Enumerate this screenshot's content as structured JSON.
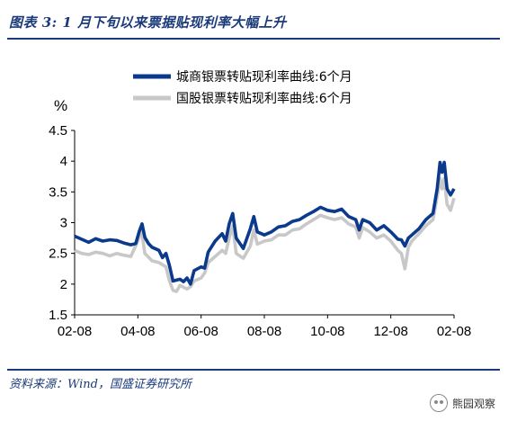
{
  "header": {
    "title": "图表 3: 1 月下旬以来票据贴现利率大幅上升"
  },
  "footer": {
    "source": "资料来源：Wind，国盛证券研究所"
  },
  "watermark": {
    "text": "熊园观察",
    "icon": "wechat-icon"
  },
  "chart_data": {
    "type": "line",
    "ylabel": "%",
    "ylim": [
      1.5,
      4.5
    ],
    "yticks": [
      "1.5",
      "2",
      "2.5",
      "3",
      "3.5",
      "4",
      "4.5"
    ],
    "xticks": [
      "02-08",
      "04-08",
      "06-08",
      "08-08",
      "10-08",
      "12-08",
      "02-08"
    ],
    "legend_position": "top-center",
    "grid": false,
    "series": [
      {
        "name": "城商银票转贴现利率曲线:6个月",
        "color": "#0b3a8c",
        "points": [
          [
            0.0,
            2.78
          ],
          [
            2.0,
            2.68
          ],
          [
            3.0,
            2.74
          ],
          [
            4.0,
            2.7
          ],
          [
            5.0,
            2.72
          ],
          [
            6.0,
            2.71
          ],
          [
            7.0,
            2.67
          ],
          [
            8.0,
            2.64
          ],
          [
            8.7,
            2.66
          ],
          [
            9.2,
            2.86
          ],
          [
            9.6,
            2.98
          ],
          [
            10.0,
            2.76
          ],
          [
            10.5,
            2.66
          ],
          [
            11.0,
            2.6
          ],
          [
            12.0,
            2.55
          ],
          [
            12.5,
            2.43
          ],
          [
            13.0,
            2.5
          ],
          [
            13.5,
            2.3
          ],
          [
            14.0,
            2.05
          ],
          [
            15.0,
            2.08
          ],
          [
            15.5,
            2.04
          ],
          [
            16.0,
            2.1
          ],
          [
            16.5,
            2.0
          ],
          [
            17.0,
            2.22
          ],
          [
            18.0,
            2.28
          ],
          [
            18.5,
            2.26
          ],
          [
            19.0,
            2.52
          ],
          [
            20.0,
            2.7
          ],
          [
            21.0,
            2.82
          ],
          [
            21.5,
            2.7
          ],
          [
            22.0,
            2.98
          ],
          [
            22.5,
            3.15
          ],
          [
            23.0,
            2.75
          ],
          [
            24.0,
            2.58
          ],
          [
            25.0,
            2.9
          ],
          [
            25.5,
            3.1
          ],
          [
            26.0,
            2.85
          ],
          [
            27.0,
            2.8
          ],
          [
            28.0,
            2.85
          ],
          [
            29.0,
            2.93
          ],
          [
            30.0,
            2.95
          ],
          [
            31.0,
            3.02
          ],
          [
            32.0,
            3.05
          ],
          [
            33.0,
            3.12
          ],
          [
            34.0,
            3.18
          ],
          [
            35.0,
            3.25
          ],
          [
            36.0,
            3.2
          ],
          [
            37.0,
            3.18
          ],
          [
            38.0,
            3.22
          ],
          [
            39.0,
            3.1
          ],
          [
            40.0,
            3.05
          ],
          [
            40.5,
            2.88
          ],
          [
            41.0,
            3.05
          ],
          [
            42.0,
            3.0
          ],
          [
            43.0,
            2.88
          ],
          [
            44.0,
            2.95
          ],
          [
            45.0,
            2.85
          ],
          [
            46.0,
            2.73
          ],
          [
            46.5,
            2.72
          ],
          [
            47.0,
            2.62
          ],
          [
            47.5,
            2.75
          ],
          [
            48.0,
            2.8
          ],
          [
            49.0,
            2.9
          ],
          [
            50.0,
            3.05
          ],
          [
            51.0,
            3.15
          ],
          [
            51.6,
            3.55
          ],
          [
            52.0,
            3.98
          ],
          [
            52.3,
            3.82
          ],
          [
            52.6,
            3.98
          ],
          [
            53.0,
            3.55
          ],
          [
            53.5,
            3.45
          ],
          [
            54.0,
            3.55
          ]
        ]
      },
      {
        "name": "国股银票转贴现利率曲线:6个月",
        "color": "#c8c8c8",
        "points": [
          [
            0.0,
            2.55
          ],
          [
            1.0,
            2.5
          ],
          [
            2.0,
            2.48
          ],
          [
            3.0,
            2.52
          ],
          [
            4.0,
            2.5
          ],
          [
            5.0,
            2.46
          ],
          [
            6.0,
            2.5
          ],
          [
            7.0,
            2.47
          ],
          [
            8.0,
            2.45
          ],
          [
            9.0,
            2.7
          ],
          [
            9.5,
            2.88
          ],
          [
            10.0,
            2.5
          ],
          [
            10.5,
            2.44
          ],
          [
            11.0,
            2.38
          ],
          [
            12.0,
            2.35
          ],
          [
            13.0,
            2.28
          ],
          [
            13.5,
            2.05
          ],
          [
            14.0,
            1.9
          ],
          [
            14.5,
            1.88
          ],
          [
            15.0,
            1.98
          ],
          [
            16.0,
            1.92
          ],
          [
            16.5,
            1.96
          ],
          [
            17.0,
            2.05
          ],
          [
            18.0,
            2.1
          ],
          [
            18.5,
            2.18
          ],
          [
            19.0,
            2.35
          ],
          [
            20.0,
            2.45
          ],
          [
            21.0,
            2.55
          ],
          [
            21.5,
            2.5
          ],
          [
            22.0,
            2.75
          ],
          [
            22.5,
            2.95
          ],
          [
            23.0,
            2.5
          ],
          [
            24.0,
            2.42
          ],
          [
            25.0,
            2.62
          ],
          [
            25.5,
            2.88
          ],
          [
            26.0,
            2.65
          ],
          [
            27.0,
            2.7
          ],
          [
            28.0,
            2.72
          ],
          [
            29.0,
            2.8
          ],
          [
            30.0,
            2.8
          ],
          [
            31.0,
            2.88
          ],
          [
            32.0,
            2.9
          ],
          [
            33.0,
            2.98
          ],
          [
            34.0,
            3.05
          ],
          [
            35.0,
            3.12
          ],
          [
            36.0,
            3.08
          ],
          [
            37.0,
            3.05
          ],
          [
            38.0,
            3.08
          ],
          [
            39.0,
            2.98
          ],
          [
            40.0,
            2.93
          ],
          [
            40.5,
            2.75
          ],
          [
            41.0,
            2.92
          ],
          [
            42.0,
            2.85
          ],
          [
            43.0,
            2.75
          ],
          [
            44.0,
            2.8
          ],
          [
            45.0,
            2.7
          ],
          [
            46.0,
            2.55
          ],
          [
            46.5,
            2.5
          ],
          [
            47.0,
            2.25
          ],
          [
            47.5,
            2.6
          ],
          [
            48.0,
            2.7
          ],
          [
            49.0,
            2.82
          ],
          [
            50.0,
            2.95
          ],
          [
            51.0,
            3.05
          ],
          [
            51.6,
            3.42
          ],
          [
            52.0,
            3.72
          ],
          [
            52.3,
            3.55
          ],
          [
            52.6,
            3.72
          ],
          [
            53.0,
            3.3
          ],
          [
            53.5,
            3.2
          ],
          [
            54.0,
            3.4
          ]
        ]
      }
    ]
  }
}
